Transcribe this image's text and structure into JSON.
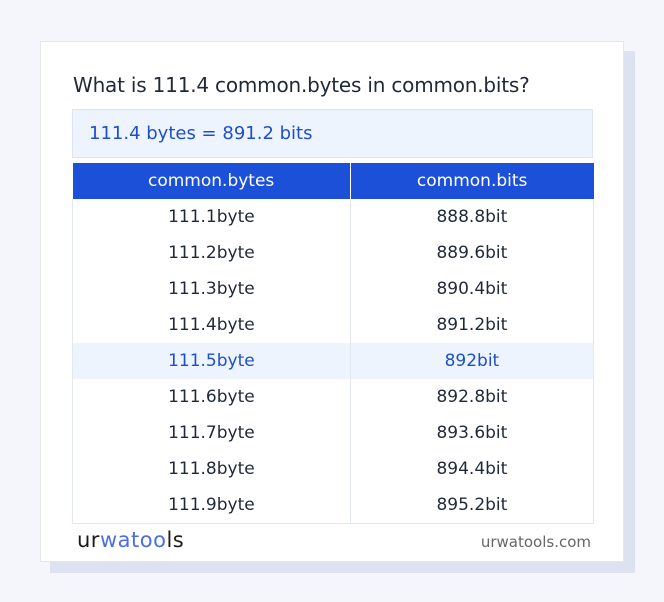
{
  "title": "What is 111.4 common.bytes in common.bits?",
  "result": "111.4 bytes = 891.2 bits",
  "table": {
    "headers": [
      "common.bytes",
      "common.bits"
    ],
    "rows": [
      [
        "111.1byte",
        "888.8bit"
      ],
      [
        "111.2byte",
        "889.6bit"
      ],
      [
        "111.3byte",
        "890.4bit"
      ],
      [
        "111.4byte",
        "891.2bit"
      ],
      [
        "111.5byte",
        "892bit"
      ],
      [
        "111.6byte",
        "892.8bit"
      ],
      [
        "111.7byte",
        "893.6bit"
      ],
      [
        "111.8byte",
        "894.4bit"
      ],
      [
        "111.9byte",
        "895.2bit"
      ]
    ],
    "highlighted_row": 4
  },
  "footer": {
    "logo": "urwatools",
    "logo_parts": [
      "ur",
      "wa",
      "too",
      "ls"
    ],
    "site": "urwatools.com"
  },
  "colors": {
    "accent": "#1c50d8",
    "highlight_bg": "#edf4fe"
  }
}
